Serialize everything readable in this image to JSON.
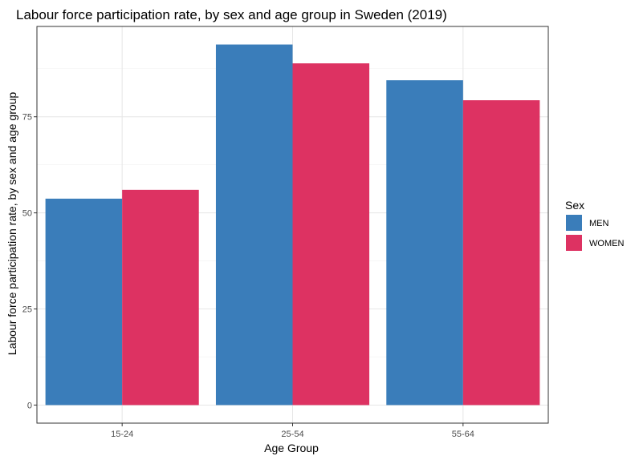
{
  "chart_data": {
    "type": "bar",
    "title": "Labour force participation rate, by sex and age group in Sweden (2019)",
    "xlabel": "Age Group",
    "ylabel": "Labour force participation rate, by sex and age group",
    "categories": [
      "15-24",
      "25-54",
      "55-64"
    ],
    "series": [
      {
        "name": "MEN",
        "values": [
          53.7,
          93.8,
          84.5
        ],
        "color": "#3a7dba"
      },
      {
        "name": "WOMEN",
        "values": [
          56.0,
          88.9,
          79.3
        ],
        "color": "#dd3262"
      }
    ],
    "yticks": [
      0,
      25,
      50,
      75
    ],
    "ylim": [
      -4.7,
      98.5
    ],
    "grid": true,
    "legend": {
      "title": "Sex",
      "position": "right"
    }
  }
}
